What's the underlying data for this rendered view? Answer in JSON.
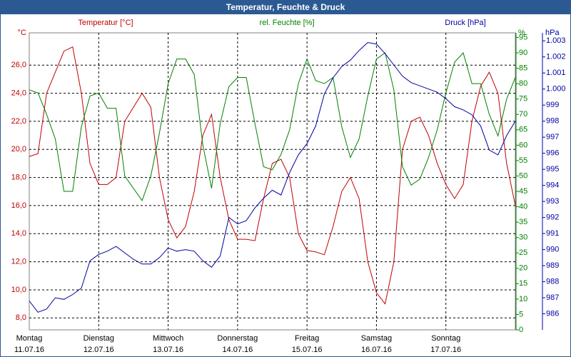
{
  "chart_data": {
    "type": "line",
    "title": "Temperatur, Feuchte & Druck",
    "x": [
      0,
      3,
      6,
      9,
      12,
      15,
      18,
      21,
      24,
      27,
      30,
      33,
      36,
      39,
      42,
      45,
      48,
      51,
      54,
      57,
      60,
      63,
      66,
      69,
      72,
      75,
      78,
      81,
      84,
      87,
      90,
      93,
      96,
      99,
      102,
      105,
      108,
      111,
      114,
      117,
      120,
      123,
      126,
      129,
      132,
      135,
      138,
      141,
      144,
      147,
      150,
      153,
      156,
      159,
      162,
      165,
      168
    ],
    "xlim": [
      0,
      168
    ],
    "xticks": [
      {
        "value": 0,
        "label": "Montag",
        "date": "11.07.16"
      },
      {
        "value": 24,
        "label": "Dienstag",
        "date": "12.07.16"
      },
      {
        "value": 48,
        "label": "Mittwoch",
        "date": "13.07.16"
      },
      {
        "value": 72,
        "label": "Donnerstag",
        "date": "14.07.16"
      },
      {
        "value": 96,
        "label": "Freitag",
        "date": "15.07.16"
      },
      {
        "value": 120,
        "label": "Samstag",
        "date": "16.07.16"
      },
      {
        "value": 144,
        "label": "Sonntag",
        "date": "17.07.16"
      }
    ],
    "y_unit": "°C",
    "y2_unit": "%",
    "y3_unit": "hPa",
    "ylim": [
      7.15,
      28.3
    ],
    "yticks": [
      {
        "value": 8,
        "label": "8,0"
      },
      {
        "value": 10,
        "label": "10,0"
      },
      {
        "value": 12,
        "label": "12,0"
      },
      {
        "value": 14,
        "label": "14,0"
      },
      {
        "value": 16,
        "label": "16,0"
      },
      {
        "value": 18,
        "label": "18,0"
      },
      {
        "value": 20,
        "label": "20,0"
      },
      {
        "value": 22,
        "label": "22,0"
      },
      {
        "value": 24,
        "label": "24,0"
      },
      {
        "value": 26,
        "label": "26,0"
      }
    ],
    "y2lim": [
      0,
      96.5
    ],
    "y2ticks": [
      0,
      5,
      10,
      15,
      20,
      25,
      30,
      35,
      40,
      45,
      50,
      55,
      60,
      65,
      70,
      75,
      80,
      85,
      90,
      95
    ],
    "y3lim": [
      985.0,
      1003.5
    ],
    "y3ticks": [
      986,
      987,
      988,
      989,
      990,
      991,
      992,
      993,
      994,
      995,
      996,
      997,
      998,
      999,
      {
        "value": 1000,
        "label": "1.000"
      },
      {
        "value": 1001,
        "label": "1.001"
      },
      {
        "value": 1002,
        "label": "1.002"
      },
      {
        "value": 1003,
        "label": "1.003"
      }
    ],
    "grid": true,
    "series": [
      {
        "name": "Temperatur [°C]",
        "color": "#c00000",
        "axis": "y",
        "values": [
          19.5,
          19.7,
          24,
          25.5,
          27,
          27.3,
          24,
          19,
          17.5,
          17.5,
          18,
          22,
          23,
          24,
          23,
          18,
          15,
          13.7,
          14.5,
          17,
          21,
          22.5,
          18,
          15,
          13.6,
          13.6,
          13.5,
          16.5,
          19,
          19.3,
          18,
          14,
          12.8,
          12.7,
          12.5,
          14.5,
          17,
          18,
          16.5,
          12,
          9.8,
          9,
          12,
          20,
          22,
          22.3,
          21,
          19,
          17.5,
          16.5,
          17.5,
          22,
          24.5,
          25.5,
          24,
          19,
          16
        ]
      },
      {
        "name": "rel. Feuchte [%]",
        "color": "#008000",
        "axis": "y2",
        "values": [
          78,
          77,
          70,
          62,
          45,
          45,
          66,
          76,
          77,
          72,
          72,
          50,
          46,
          42,
          50,
          64,
          80,
          88,
          88,
          83,
          60,
          46,
          67,
          79,
          82,
          82,
          67,
          53,
          52,
          57,
          65,
          80,
          88,
          81,
          80,
          82,
          66,
          56,
          62,
          76,
          88,
          90,
          78,
          53,
          47,
          49,
          56,
          65,
          77,
          87,
          90,
          80,
          80,
          70,
          63,
          75,
          82
        ]
      },
      {
        "name": "Druck [hPa]",
        "color": "#0000a0",
        "axis": "y3",
        "values": [
          986.8,
          986.1,
          986.3,
          987.0,
          986.9,
          987.2,
          987.6,
          989.3,
          989.7,
          989.9,
          990.2,
          989.8,
          989.4,
          989.1,
          989.1,
          989.5,
          990.1,
          989.9,
          990.0,
          989.9,
          989.3,
          988.9,
          989.6,
          992.0,
          991.6,
          991.8,
          992.6,
          993.2,
          993.7,
          993.4,
          994.8,
          995.9,
          996.6,
          997.7,
          999.7,
          1000.7,
          1001.4,
          1001.8,
          1002.4,
          1002.9,
          1002.8,
          1002.2,
          1001.5,
          1000.8,
          1000.4,
          1000.2,
          1000.0,
          999.8,
          999.4,
          998.9,
          998.7,
          998.4,
          997.7,
          996.2,
          995.9,
          997.1,
          998.0
        ]
      }
    ]
  }
}
